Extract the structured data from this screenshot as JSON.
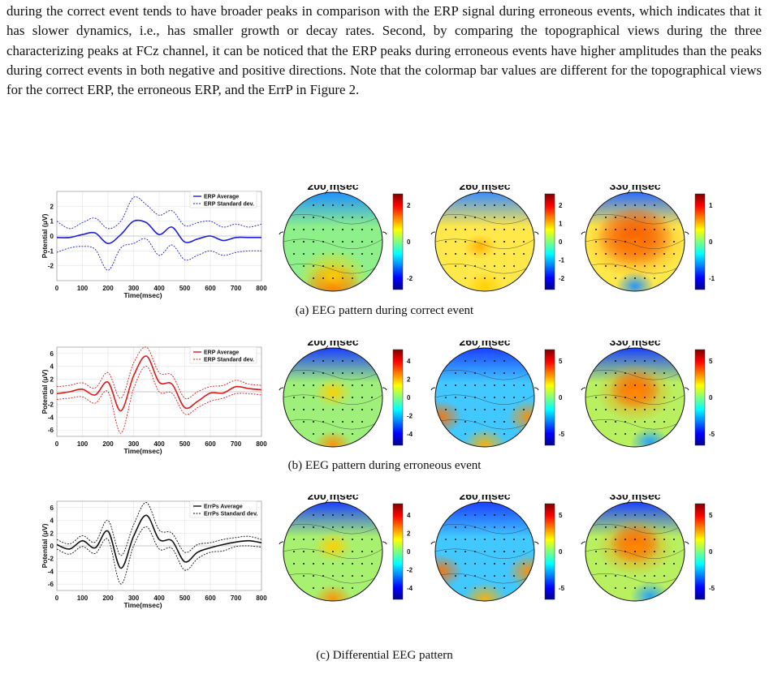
{
  "paragraph": "during the correct event tends to have broader peaks in comparison with the ERP signal during erroneous events, which indicates that it has slower dynamics, i.e., has smaller growth or decay rates. Second, by comparing the topographical views during the three characterizing peaks at FCz channel, it can be noticed that the ERP peaks during erroneous events have higher amplitudes than the peaks during correct events in both negative and positive directions. Note that the colormap bar values are different for the topographical views for the correct ERP, the erroneous ERP, and the ErrP in Figure 2.",
  "panels": [
    {
      "caption": "(a) EEG pattern during correct event",
      "color": "#1f1fd6",
      "legend": [
        "ERP Average",
        "ERP Standard dev."
      ],
      "topo_titles": [
        "200 msec",
        "260 msec",
        "330 msec"
      ],
      "colorbars": [
        [
          "2",
          "0",
          "-2"
        ],
        [
          "2",
          "1",
          "0",
          "-1",
          "-2"
        ],
        [
          "1",
          "0",
          "-1"
        ]
      ]
    },
    {
      "caption": "(b) EEG pattern during erroneous event",
      "color": "#e01818",
      "legend": [
        "ERP Average",
        "ERP Standard dev."
      ],
      "topo_titles": [
        "200 msec",
        "260 msec",
        "330 msec"
      ],
      "colorbars": [
        [
          "4",
          "2",
          "0",
          "-2",
          "-4"
        ],
        [
          "5",
          "0",
          "-5"
        ],
        [
          "5",
          "0",
          "-5"
        ]
      ]
    },
    {
      "caption": "(c) Differential EEG pattern",
      "color": "#111111",
      "legend": [
        "ErrPs Average",
        "ErrPs Standard dev."
      ],
      "topo_titles": [
        "200 msec",
        "260 msec",
        "330 msec"
      ],
      "colorbars": [
        [
          "4",
          "2",
          "0",
          "-2",
          "-4"
        ],
        [
          "5",
          "0",
          "-5"
        ],
        [
          "5",
          "0",
          "-5"
        ]
      ]
    }
  ],
  "chart_data": [
    {
      "type": "line",
      "xlabel": "Time(msec)",
      "ylabel": "Potential (μV)",
      "xlim": [
        0,
        800
      ],
      "ylim": [
        -3,
        3
      ],
      "xticks": [
        "0",
        "100",
        "200",
        "300",
        "400",
        "500",
        "600",
        "700",
        "800"
      ],
      "yticks": [
        "2",
        "1",
        "0",
        "-1",
        "-2"
      ],
      "x": [
        0,
        50,
        100,
        150,
        200,
        250,
        300,
        350,
        400,
        450,
        500,
        550,
        600,
        650,
        700,
        750,
        800
      ],
      "series": [
        {
          "name": "ERP Average",
          "values": [
            -0.1,
            -0.1,
            0.1,
            0.2,
            -0.5,
            0.1,
            1.0,
            0.9,
            0.1,
            0.6,
            -0.4,
            -0.2,
            0.0,
            -0.3,
            -0.1,
            -0.1,
            -0.1
          ]
        },
        {
          "name": "ERP Standard dev.",
          "values": [
            1.0,
            0.5,
            0.9,
            1.2,
            0.5,
            1.0,
            2.6,
            2.1,
            1.4,
            1.7,
            0.7,
            0.9,
            1.0,
            0.6,
            0.8,
            0.6,
            0.8
          ]
        },
        {
          "name": "ERP Standard dev.",
          "values": [
            -1.1,
            -0.8,
            -0.7,
            -0.9,
            -2.3,
            -0.8,
            -0.5,
            -0.2,
            -1.3,
            -0.6,
            -1.6,
            -1.3,
            -1.0,
            -1.3,
            -1.1,
            -1.0,
            -1.0
          ]
        }
      ]
    },
    {
      "type": "line",
      "xlabel": "Time(msec)",
      "ylabel": "Potential (μV)",
      "xlim": [
        0,
        800
      ],
      "ylim": [
        -7,
        7
      ],
      "xticks": [
        "0",
        "100",
        "200",
        "300",
        "400",
        "500",
        "600",
        "700",
        "800"
      ],
      "yticks": [
        "6",
        "4",
        "2",
        "0",
        "-2",
        "-4",
        "-6"
      ],
      "x": [
        0,
        50,
        100,
        150,
        200,
        250,
        300,
        350,
        400,
        450,
        500,
        550,
        600,
        650,
        700,
        750,
        800
      ],
      "series": [
        {
          "name": "ERP Average",
          "values": [
            -0.3,
            0.0,
            0.4,
            -0.5,
            1.5,
            -3.0,
            2.5,
            5.6,
            1.5,
            1.2,
            -2.5,
            -1.5,
            -0.2,
            -0.2,
            0.8,
            0.5,
            0.3
          ]
        },
        {
          "name": "ERP Standard dev.",
          "values": [
            0.8,
            1.0,
            1.4,
            0.6,
            3.0,
            -1.0,
            4.5,
            7.0,
            3.0,
            2.6,
            -1.0,
            0.0,
            0.8,
            1.0,
            1.8,
            1.2,
            1.0
          ]
        },
        {
          "name": "ERP Standard dev.",
          "values": [
            -1.2,
            -1.0,
            -0.8,
            -1.8,
            0.0,
            -6.5,
            0.5,
            4.0,
            0.0,
            -0.2,
            -3.5,
            -2.5,
            -1.5,
            -1.0,
            -0.3,
            -0.3,
            -0.5
          ]
        }
      ]
    },
    {
      "type": "line",
      "xlabel": "Time(msec)",
      "ylabel": "Potential (μV)",
      "xlim": [
        0,
        800
      ],
      "ylim": [
        -7,
        7
      ],
      "xticks": [
        "0",
        "100",
        "200",
        "300",
        "400",
        "500",
        "600",
        "700",
        "800"
      ],
      "yticks": [
        "6",
        "4",
        "2",
        "0",
        "-2",
        "-4",
        "-6"
      ],
      "x": [
        0,
        50,
        100,
        150,
        200,
        250,
        300,
        350,
        400,
        450,
        500,
        550,
        600,
        650,
        700,
        750,
        800
      ],
      "series": [
        {
          "name": "ErrPs Average",
          "values": [
            0.2,
            -0.5,
            0.8,
            -0.3,
            2.3,
            -3.5,
            1.5,
            4.8,
            1.0,
            0.8,
            -2.5,
            -1.0,
            -0.3,
            0.2,
            0.6,
            0.8,
            0.5
          ]
        },
        {
          "name": "ErrPs Standard dev.",
          "values": [
            1.0,
            0.3,
            1.6,
            0.6,
            4.0,
            -1.5,
            3.3,
            6.8,
            2.5,
            2.0,
            -1.0,
            0.2,
            0.5,
            1.0,
            1.3,
            1.5,
            1.0
          ]
        },
        {
          "name": "ErrPs Standard dev.",
          "values": [
            -0.5,
            -1.3,
            -0.1,
            -1.2,
            1.0,
            -6.0,
            0.0,
            3.0,
            -0.5,
            -0.4,
            -3.8,
            -2.0,
            -1.0,
            -0.8,
            -0.1,
            0.0,
            -0.2
          ]
        }
      ]
    }
  ]
}
